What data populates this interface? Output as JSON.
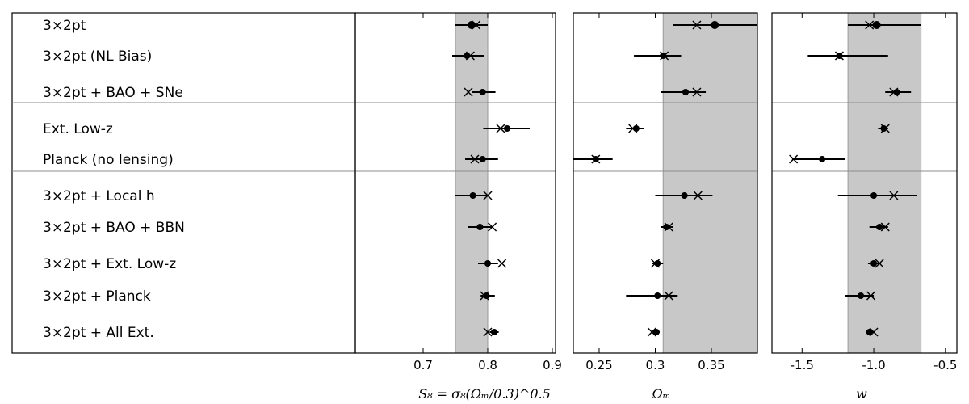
{
  "chart_data": {
    "type": "scatter",
    "row_labels": [
      "3×2pt",
      "3×2pt (NL Bias)",
      "3×2pt + BAO + SNe",
      "Ext. Low-z",
      "Planck (no lensing)",
      "3×2pt + Local h",
      "3×2pt + BAO + BBN",
      "3×2pt + Ext. Low-z",
      "3×2pt + Planck",
      "3×2pt + All Ext."
    ],
    "panels": [
      {
        "id": "s8",
        "xlabel": "S₈ = σ₈(Ωₘ/0.3)^0.5",
        "xlim": [
          0.595,
          0.905
        ],
        "ticks": [
          0.7,
          0.8,
          0.9
        ],
        "tick_labels": [
          "0.7",
          "0.8",
          "0.9"
        ],
        "band": [
          0.75,
          0.8
        ],
        "points": [
          {
            "mean": 0.775,
            "lo": 0.75,
            "hi": 0.8,
            "x_marker": 0.782
          },
          {
            "mean": 0.768,
            "lo": 0.745,
            "hi": 0.795,
            "x_marker": 0.773
          },
          {
            "mean": 0.792,
            "lo": 0.775,
            "hi": 0.812,
            "x_marker": 0.77
          },
          {
            "mean": 0.83,
            "lo": 0.793,
            "hi": 0.865,
            "x_marker": 0.82
          },
          {
            "mean": 0.792,
            "lo": 0.765,
            "hi": 0.816,
            "x_marker": 0.78
          },
          {
            "mean": 0.777,
            "lo": 0.75,
            "hi": 0.8,
            "x_marker": 0.8
          },
          {
            "mean": 0.788,
            "lo": 0.77,
            "hi": 0.806,
            "x_marker": 0.807
          },
          {
            "mean": 0.8,
            "lo": 0.785,
            "hi": 0.816,
            "x_marker": 0.822
          },
          {
            "mean": 0.798,
            "lo": 0.789,
            "hi": 0.811,
            "x_marker": 0.795
          },
          {
            "mean": 0.81,
            "lo": 0.803,
            "hi": 0.817,
            "x_marker": 0.8
          }
        ]
      },
      {
        "id": "om",
        "xlabel": "Ωₘ",
        "xlim": [
          0.227,
          0.391
        ],
        "ticks": [
          0.25,
          0.3,
          0.35
        ],
        "tick_labels": [
          "0.25",
          "0.3",
          "0.35"
        ],
        "band": [
          0.307,
          0.391
        ],
        "points": [
          {
            "mean": 0.353,
            "lo": 0.316,
            "hi": 0.391,
            "x_marker": 0.337
          },
          {
            "mean": 0.307,
            "lo": 0.281,
            "hi": 0.323,
            "x_marker": 0.308
          },
          {
            "mean": 0.327,
            "lo": 0.305,
            "hi": 0.345,
            "x_marker": 0.337
          },
          {
            "mean": 0.283,
            "lo": 0.274,
            "hi": 0.29,
            "x_marker": 0.28
          },
          {
            "mean": 0.247,
            "lo": 0.227,
            "hi": 0.262,
            "x_marker": 0.247
          },
          {
            "mean": 0.326,
            "lo": 0.3,
            "hi": 0.351,
            "x_marker": 0.338
          },
          {
            "mean": 0.31,
            "lo": 0.305,
            "hi": 0.316,
            "x_marker": 0.312
          },
          {
            "mean": 0.302,
            "lo": 0.297,
            "hi": 0.307,
            "x_marker": 0.3
          },
          {
            "mean": 0.302,
            "lo": 0.274,
            "hi": 0.32,
            "x_marker": 0.312
          },
          {
            "mean": 0.301,
            "lo": 0.298,
            "hi": 0.304,
            "x_marker": 0.297
          }
        ]
      },
      {
        "id": "w",
        "xlabel": "w",
        "xlim": [
          -1.71,
          -0.42
        ],
        "ticks": [
          -1.5,
          -1.0,
          -0.5
        ],
        "tick_labels": [
          "-1.5",
          "-1.0",
          "-0.5"
        ],
        "band": [
          -1.18,
          -0.67
        ],
        "points": [
          {
            "mean": -0.98,
            "lo": -1.18,
            "hi": -0.67,
            "x_marker": -1.03
          },
          {
            "mean": -1.24,
            "lo": -1.46,
            "hi": -0.9,
            "x_marker": -1.24
          },
          {
            "mean": -0.84,
            "lo": -0.92,
            "hi": -0.74,
            "x_marker": -0.86
          },
          {
            "mean": -0.93,
            "lo": -0.97,
            "hi": -0.9,
            "x_marker": -0.92
          },
          {
            "mean": -1.36,
            "lo": -1.57,
            "hi": -1.2,
            "x_marker": -1.56
          },
          {
            "mean": -1.0,
            "lo": -1.25,
            "hi": -0.7,
            "x_marker": -0.86
          },
          {
            "mean": -0.96,
            "lo": -1.03,
            "hi": -0.9,
            "x_marker": -0.92
          },
          {
            "mean": -1.0,
            "lo": -1.04,
            "hi": -0.95,
            "x_marker": -0.96
          },
          {
            "mean": -1.09,
            "lo": -1.2,
            "hi": -1.0,
            "x_marker": -1.02
          },
          {
            "mean": -1.03,
            "lo": -1.05,
            "hi": -1.0,
            "x_marker": -1.0
          }
        ]
      }
    ],
    "group_separators_after_rows": [
      2,
      4
    ],
    "colors": {
      "band": "#c8c8c8",
      "ink": "#000000",
      "separator": "#8c8c8c"
    },
    "grid": false
  }
}
